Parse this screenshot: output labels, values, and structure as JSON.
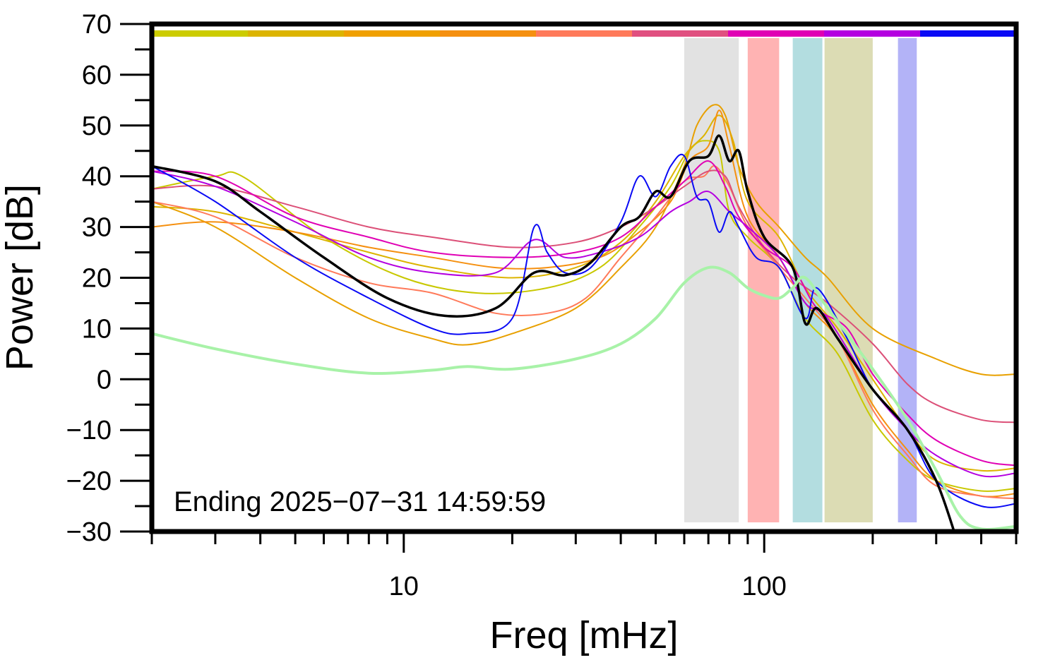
{
  "chart_data": {
    "type": "line",
    "xlabel": "Freq [mHz]",
    "ylabel": "Power [dB]",
    "x_scale": "log",
    "xlim": [
      2,
      500
    ],
    "ylim": [
      -30,
      70
    ],
    "xticks_major": [
      10,
      100
    ],
    "xticks_major_labels": [
      "10",
      "100"
    ],
    "yticks": [
      -30,
      -20,
      -10,
      0,
      10,
      20,
      30,
      40,
      50,
      60,
      70
    ],
    "ytick_labels": [
      "−30",
      "−20",
      "−10",
      "0",
      "10",
      "20",
      "30",
      "40",
      "50",
      "60",
      "70"
    ],
    "annotation": "Ending 2025−07−31 14:59:59",
    "bands": [
      {
        "x": [
          60,
          85
        ],
        "color": "#e2e2e2"
      },
      {
        "x": [
          90,
          110
        ],
        "color": "#ffb3b3"
      },
      {
        "x": [
          120,
          145
        ],
        "color": "#b3dde0"
      },
      {
        "x": [
          147,
          200
        ],
        "color": "#dcdcb4"
      },
      {
        "x": [
          235,
          265
        ],
        "color": "#b3b3f7"
      }
    ],
    "top_strip": [
      "#cccc00",
      "#dcb400",
      "#f0a000",
      "#f59010",
      "#ff7a5a",
      "#e05080",
      "#e000b4",
      "#b400e0",
      "#0a0af5"
    ],
    "series": [
      {
        "color": "#c8c800",
        "width": 2,
        "points": [
          [
            2,
            37.5
          ],
          [
            3,
            40
          ],
          [
            3.6,
            39.8
          ],
          [
            6,
            28
          ],
          [
            10,
            20
          ],
          [
            16,
            17
          ],
          [
            25,
            18
          ],
          [
            35,
            22
          ],
          [
            45,
            30
          ],
          [
            55,
            38
          ],
          [
            62,
            45
          ],
          [
            68,
            47
          ],
          [
            75,
            45
          ],
          [
            80,
            33
          ],
          [
            90,
            28
          ],
          [
            110,
            22
          ],
          [
            130,
            12
          ],
          [
            160,
            5
          ],
          [
            200,
            -8
          ],
          [
            250,
            -16
          ],
          [
            300,
            -20
          ],
          [
            400,
            -22
          ],
          [
            500,
            -21.5
          ]
        ]
      },
      {
        "color": "#dcb400",
        "width": 2,
        "points": [
          [
            2,
            34
          ],
          [
            3,
            33
          ],
          [
            5,
            29
          ],
          [
            8,
            25
          ],
          [
            12,
            22
          ],
          [
            20,
            20
          ],
          [
            30,
            22
          ],
          [
            40,
            27
          ],
          [
            50,
            35
          ],
          [
            60,
            44
          ],
          [
            68,
            48
          ],
          [
            75,
            52
          ],
          [
            82,
            47
          ],
          [
            90,
            35
          ],
          [
            110,
            28
          ],
          [
            130,
            18
          ],
          [
            160,
            10
          ],
          [
            200,
            0
          ],
          [
            250,
            -10
          ],
          [
            300,
            -16
          ],
          [
            400,
            -18
          ],
          [
            500,
            -17.5
          ]
        ]
      },
      {
        "color": "#e8a000",
        "width": 2,
        "points": [
          [
            2,
            35
          ],
          [
            3,
            30
          ],
          [
            5,
            20
          ],
          [
            8,
            12
          ],
          [
            12,
            8
          ],
          [
            15,
            6.8
          ],
          [
            20,
            9
          ],
          [
            30,
            14
          ],
          [
            40,
            22
          ],
          [
            50,
            30
          ],
          [
            60,
            42
          ],
          [
            65,
            50
          ],
          [
            72,
            54
          ],
          [
            78,
            52
          ],
          [
            85,
            42
          ],
          [
            95,
            35
          ],
          [
            110,
            30
          ],
          [
            130,
            24
          ],
          [
            150,
            20
          ],
          [
            200,
            10
          ],
          [
            300,
            4
          ],
          [
            400,
            1
          ],
          [
            500,
            1
          ]
        ]
      },
      {
        "color": "#f59010",
        "width": 2,
        "points": [
          [
            2,
            30
          ],
          [
            3,
            31
          ],
          [
            5,
            29
          ],
          [
            8,
            26
          ],
          [
            12,
            24
          ],
          [
            18,
            22
          ],
          [
            25,
            22
          ],
          [
            35,
            24
          ],
          [
            45,
            29
          ],
          [
            55,
            35
          ],
          [
            62,
            43
          ],
          [
            70,
            46
          ],
          [
            75,
            53
          ],
          [
            80,
            46
          ],
          [
            90,
            32
          ],
          [
            110,
            24
          ],
          [
            130,
            15
          ],
          [
            160,
            8
          ],
          [
            200,
            -5
          ],
          [
            250,
            -14
          ],
          [
            300,
            -20
          ],
          [
            400,
            -23
          ],
          [
            500,
            -22.5
          ]
        ]
      },
      {
        "color": "#ff7a5a",
        "width": 2,
        "points": [
          [
            2,
            35
          ],
          [
            3,
            32
          ],
          [
            5,
            24
          ],
          [
            8,
            19
          ],
          [
            12,
            17
          ],
          [
            18,
            13
          ],
          [
            25,
            13
          ],
          [
            32,
            16
          ],
          [
            40,
            24
          ],
          [
            50,
            32
          ],
          [
            60,
            39
          ],
          [
            68,
            40
          ],
          [
            73,
            42
          ],
          [
            80,
            38
          ],
          [
            90,
            30
          ],
          [
            110,
            22
          ],
          [
            130,
            16
          ],
          [
            160,
            8
          ],
          [
            200,
            -6
          ],
          [
            250,
            -15
          ],
          [
            300,
            -21
          ],
          [
            400,
            -23
          ],
          [
            500,
            -23.5
          ]
        ]
      },
      {
        "color": "#dc5078",
        "width": 2,
        "points": [
          [
            2,
            37.5
          ],
          [
            3,
            38
          ],
          [
            5,
            34
          ],
          [
            8,
            30
          ],
          [
            12,
            28
          ],
          [
            20,
            26
          ],
          [
            30,
            27
          ],
          [
            40,
            30
          ],
          [
            50,
            34
          ],
          [
            60,
            38
          ],
          [
            70,
            41
          ],
          [
            78,
            40
          ],
          [
            85,
            34
          ],
          [
            100,
            26
          ],
          [
            120,
            20
          ],
          [
            150,
            15
          ],
          [
            200,
            7
          ],
          [
            250,
            -1
          ],
          [
            300,
            -5
          ],
          [
            400,
            -8
          ],
          [
            500,
            -8.5
          ]
        ]
      },
      {
        "color": "#e000b4",
        "width": 2,
        "points": [
          [
            2,
            41
          ],
          [
            3,
            40
          ],
          [
            5,
            32
          ],
          [
            8,
            28
          ],
          [
            12,
            25
          ],
          [
            20,
            24
          ],
          [
            30,
            25
          ],
          [
            40,
            28
          ],
          [
            50,
            34
          ],
          [
            60,
            39
          ],
          [
            70,
            43
          ],
          [
            78,
            38
          ],
          [
            85,
            32
          ],
          [
            100,
            26
          ],
          [
            120,
            22
          ],
          [
            140,
            14
          ],
          [
            170,
            10
          ],
          [
            200,
            1
          ],
          [
            250,
            -7
          ],
          [
            300,
            -12
          ],
          [
            400,
            -16
          ],
          [
            500,
            -17
          ]
        ]
      },
      {
        "color": "#b400e0",
        "width": 2,
        "points": [
          [
            2,
            41
          ],
          [
            3,
            38
          ],
          [
            5,
            31
          ],
          [
            8,
            24
          ],
          [
            12,
            21
          ],
          [
            18,
            21
          ],
          [
            23,
            27.5
          ],
          [
            28,
            24
          ],
          [
            35,
            25
          ],
          [
            45,
            28
          ],
          [
            55,
            33
          ],
          [
            62,
            35
          ],
          [
            70,
            37
          ],
          [
            80,
            33
          ],
          [
            90,
            30
          ],
          [
            110,
            24
          ],
          [
            130,
            15
          ],
          [
            150,
            12
          ],
          [
            200,
            -2
          ],
          [
            250,
            -10
          ],
          [
            300,
            -15
          ],
          [
            400,
            -19
          ],
          [
            500,
            -18.5
          ]
        ]
      },
      {
        "color": "#0a0af5",
        "width": 2,
        "points": [
          [
            2,
            42
          ],
          [
            3,
            35
          ],
          [
            5,
            24
          ],
          [
            8,
            16
          ],
          [
            12,
            10
          ],
          [
            15,
            9
          ],
          [
            20,
            12
          ],
          [
            23,
            30
          ],
          [
            25,
            25
          ],
          [
            28,
            21
          ],
          [
            33,
            22
          ],
          [
            40,
            31
          ],
          [
            45,
            40
          ],
          [
            50,
            36
          ],
          [
            55,
            42
          ],
          [
            60,
            44
          ],
          [
            65,
            36
          ],
          [
            70,
            35
          ],
          [
            75,
            29
          ],
          [
            80,
            33
          ],
          [
            85,
            30
          ],
          [
            95,
            24
          ],
          [
            110,
            22
          ],
          [
            130,
            12
          ],
          [
            140,
            18
          ],
          [
            170,
            8
          ],
          [
            200,
            -2
          ],
          [
            250,
            -10
          ],
          [
            300,
            -20
          ],
          [
            400,
            -25
          ],
          [
            500,
            -24.5
          ]
        ]
      },
      {
        "color": "#000000",
        "width": 3.5,
        "points": [
          [
            2,
            42
          ],
          [
            3,
            39
          ],
          [
            4,
            33
          ],
          [
            6,
            24
          ],
          [
            9,
            16
          ],
          [
            13,
            12.5
          ],
          [
            18,
            14
          ],
          [
            23,
            21
          ],
          [
            28,
            20.5
          ],
          [
            33,
            23
          ],
          [
            40,
            30
          ],
          [
            45,
            32
          ],
          [
            50,
            37
          ],
          [
            55,
            36
          ],
          [
            62,
            43
          ],
          [
            70,
            44
          ],
          [
            75,
            48
          ],
          [
            80,
            43
          ],
          [
            85,
            45
          ],
          [
            90,
            37
          ],
          [
            100,
            28
          ],
          [
            120,
            22
          ],
          [
            130,
            11
          ],
          [
            140,
            14
          ],
          [
            160,
            8
          ],
          [
            200,
            -2
          ],
          [
            250,
            -10
          ],
          [
            300,
            -20
          ],
          [
            340,
            -31
          ]
        ]
      },
      {
        "color": "#a8f2a8",
        "width": 4,
        "points": [
          [
            2,
            9
          ],
          [
            3,
            6
          ],
          [
            5,
            3
          ],
          [
            8,
            1.2
          ],
          [
            12,
            1.8
          ],
          [
            15,
            2.5
          ],
          [
            20,
            2
          ],
          [
            30,
            4
          ],
          [
            40,
            7
          ],
          [
            50,
            12
          ],
          [
            60,
            19
          ],
          [
            70,
            22
          ],
          [
            80,
            21
          ],
          [
            90,
            18
          ],
          [
            100,
            16.5
          ],
          [
            110,
            16
          ],
          [
            120,
            18
          ],
          [
            130,
            20
          ],
          [
            150,
            14
          ],
          [
            200,
            2
          ],
          [
            250,
            -8
          ],
          [
            300,
            -18
          ],
          [
            350,
            -27
          ],
          [
            400,
            -29.5
          ],
          [
            500,
            -29
          ]
        ]
      }
    ]
  }
}
